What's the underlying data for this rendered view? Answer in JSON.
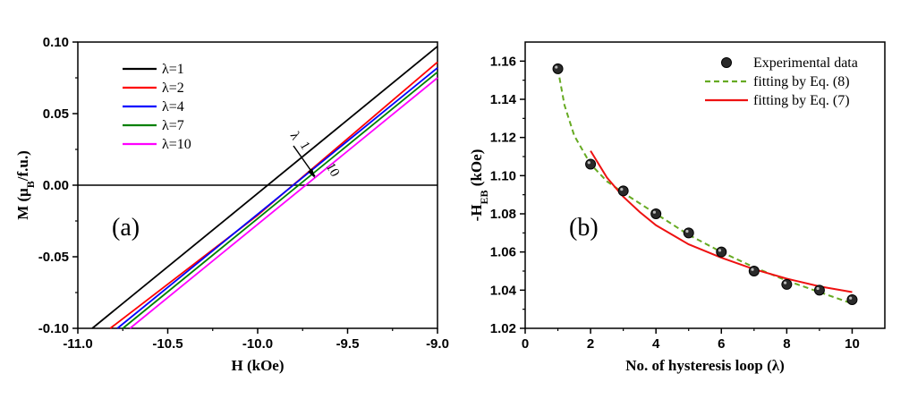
{
  "chart_data": [
    {
      "type": "line",
      "panel_label": "(a)",
      "xlabel": "H (kOe)",
      "ylabel_main": "M (μ",
      "ylabel_sub": "B",
      "ylabel_tail": "/f.u.)",
      "xlim": [
        -11.0,
        -9.0
      ],
      "ylim": [
        -0.1,
        0.1
      ],
      "xticks": [
        "-11.0",
        "-10.5",
        "-10.0",
        "-9.5",
        "-9.0"
      ],
      "xtick_values": [
        -11.0,
        -10.5,
        -10.0,
        -9.5,
        -9.0
      ],
      "yticks": [
        "-0.10",
        "-0.05",
        "0.00",
        "0.05",
        "0.10"
      ],
      "ytick_values": [
        -0.1,
        -0.05,
        0.0,
        0.05,
        0.1
      ],
      "series": [
        {
          "name": "λ=1",
          "color": "#000000",
          "x": [
            -10.92,
            -10.1,
            -9.0
          ],
          "y": [
            -0.1,
            -0.016,
            0.097
          ]
        },
        {
          "name": "λ=2",
          "color": "#ff0000",
          "x": [
            -10.82,
            -10.0,
            -9.0
          ],
          "y": [
            -0.1,
            -0.021,
            0.086
          ]
        },
        {
          "name": "λ=4",
          "color": "#0000ff",
          "x": [
            -10.78,
            -9.0
          ],
          "y": [
            -0.1,
            0.082
          ]
        },
        {
          "name": "λ=7",
          "color": "#008000",
          "x": [
            -10.75,
            -9.0
          ],
          "y": [
            -0.1,
            0.079
          ]
        },
        {
          "name": "λ=10",
          "color": "#ff00ff",
          "x": [
            -10.71,
            -9.0
          ],
          "y": [
            -0.1,
            0.075
          ]
        }
      ],
      "annotations": {
        "arrow_label": "λ",
        "arrow_start": "1",
        "arrow_end": "10"
      },
      "legend_position": "top-left"
    },
    {
      "type": "scatter",
      "panel_label": "(b)",
      "xlabel": "No. of hysteresis loop (λ)",
      "ylabel_main": "-H",
      "ylabel_sub": "EB",
      "ylabel_tail": " (kOe)",
      "xlim": [
        0,
        11
      ],
      "ylim": [
        1.02,
        1.17
      ],
      "xticks": [
        "0",
        "2",
        "4",
        "6",
        "8",
        "10"
      ],
      "xtick_values": [
        0,
        2,
        4,
        6,
        8,
        10
      ],
      "yticks": [
        "1.02",
        "1.04",
        "1.06",
        "1.08",
        "1.10",
        "1.12",
        "1.14",
        "1.16"
      ],
      "ytick_values": [
        1.02,
        1.04,
        1.06,
        1.08,
        1.1,
        1.12,
        1.14,
        1.16
      ],
      "series": [
        {
          "name": "Experimental data",
          "kind": "points",
          "color": "#333333",
          "x": [
            1,
            2,
            3,
            4,
            5,
            6,
            7,
            8,
            9,
            10
          ],
          "y": [
            1.156,
            1.106,
            1.092,
            1.08,
            1.07,
            1.06,
            1.05,
            1.043,
            1.04,
            1.035
          ]
        },
        {
          "name": "fitting by Eq. (8)",
          "kind": "dashed-line",
          "color": "#66aa22",
          "x": [
            1,
            1.2,
            1.5,
            2,
            2.5,
            3,
            4,
            5,
            6,
            7,
            8,
            9,
            10
          ],
          "y": [
            1.156,
            1.137,
            1.121,
            1.106,
            1.097,
            1.091,
            1.08,
            1.069,
            1.06,
            1.052,
            1.045,
            1.039,
            1.033
          ]
        },
        {
          "name": "fitting by Eq. (7)",
          "kind": "line",
          "color": "#ee1111",
          "x": [
            2,
            2.5,
            3,
            3.5,
            4,
            5,
            6,
            7,
            8,
            9,
            10
          ],
          "y": [
            1.113,
            1.099,
            1.089,
            1.081,
            1.074,
            1.064,
            1.057,
            1.051,
            1.046,
            1.042,
            1.039
          ]
        }
      ],
      "legend_position": "top-right"
    }
  ]
}
